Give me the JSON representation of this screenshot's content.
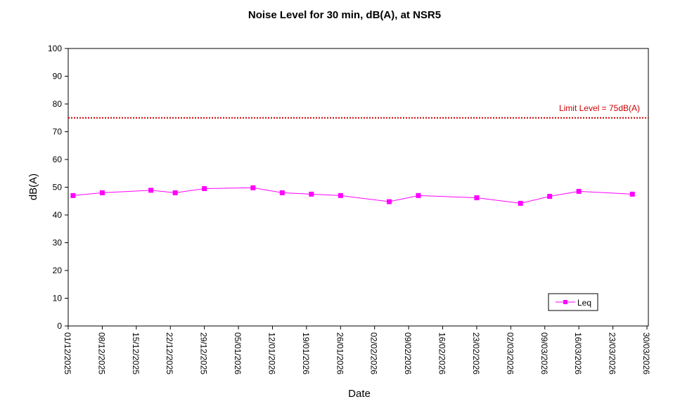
{
  "chart_data": {
    "type": "line",
    "title": "Noise Level for 30 min, dB(A), at NSR5",
    "xlabel": "Date",
    "ylabel": "dB(A)",
    "ylim": [
      0,
      100
    ],
    "yticks": [
      0,
      10,
      20,
      30,
      40,
      50,
      60,
      70,
      80,
      90,
      100
    ],
    "xlim": [
      "01/12/2025",
      "30/03/2026"
    ],
    "xticks": [
      "01/12/2025",
      "08/12/2025",
      "15/12/2025",
      "22/12/2025",
      "29/12/2025",
      "05/01/2026",
      "12/01/2026",
      "19/01/2026",
      "26/01/2026",
      "02/02/2026",
      "09/02/2026",
      "16/02/2026",
      "23/02/2026",
      "02/03/2026",
      "09/03/2026",
      "16/03/2026",
      "23/03/2026",
      "30/03/2026"
    ],
    "grid": false,
    "legend": {
      "position": "bottom-right",
      "entries": [
        "Leq"
      ]
    },
    "series": [
      {
        "name": "Leq",
        "color": "#ff00ff",
        "x": [
          "02/12/2025",
          "08/12/2025",
          "18/12/2025",
          "23/12/2025",
          "29/12/2025",
          "08/01/2026",
          "14/01/2026",
          "20/01/2026",
          "26/01/2026",
          "05/02/2026",
          "11/02/2026",
          "23/02/2026",
          "04/03/2026",
          "10/03/2026",
          "16/03/2026",
          "27/03/2026"
        ],
        "values": [
          47.0,
          48.0,
          48.9,
          48.0,
          49.5,
          49.8,
          48.0,
          47.5,
          47.0,
          44.8,
          47.0,
          46.2,
          44.2,
          46.7,
          48.5,
          47.5
        ]
      }
    ],
    "reference_line": {
      "value": 75,
      "label": "Limit Level = 75dB(A)",
      "color": "#cc0000"
    }
  }
}
